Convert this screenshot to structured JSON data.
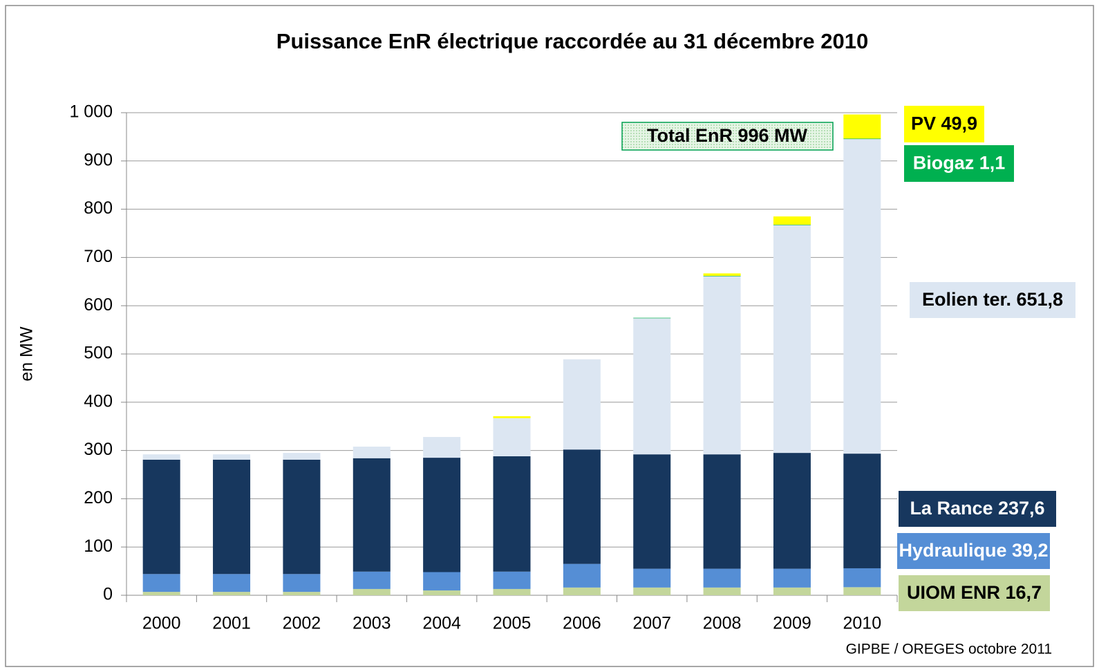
{
  "chart_data": {
    "type": "stacked_bar",
    "title": "Puissance EnR électrique raccordée au 31 décembre 2010",
    "y_label": "en MW",
    "source": "GIPBE / OREGES octobre 2011",
    "total_annotation": "Total EnR 996 MW",
    "categories": [
      "2000",
      "2001",
      "2002",
      "2003",
      "2004",
      "2005",
      "2006",
      "2007",
      "2008",
      "2009",
      "2010"
    ],
    "series": [
      {
        "name": "UIOM ENR",
        "color": "#c3d69b",
        "label": "UIOM ENR 16,7",
        "values": [
          7,
          7,
          7,
          13,
          10,
          13,
          16,
          16,
          16,
          16,
          16.7
        ]
      },
      {
        "name": "Hydraulique",
        "color": "#558ed5",
        "label": "Hydraulique 39,2",
        "values": [
          37,
          37,
          37,
          36,
          38,
          36,
          49,
          39,
          39,
          39,
          39.2
        ]
      },
      {
        "name": "La Rance",
        "color": "#17375e",
        "label": "La Rance 237,6",
        "values": [
          237,
          237,
          237,
          235,
          237,
          239,
          237,
          237,
          237,
          240,
          237.6
        ]
      },
      {
        "name": "Eolien ter.",
        "color": "#dce6f2",
        "label": "Eolien ter. 651,8",
        "values": [
          11,
          11,
          14,
          24,
          43,
          79,
          187,
          282,
          369,
          472,
          651.8
        ]
      },
      {
        "name": "Biogaz",
        "color": "#00b050",
        "label": "Biogaz 1,1",
        "values": [
          0,
          0,
          0,
          0,
          0,
          0,
          0,
          1,
          1,
          1,
          1.1
        ]
      },
      {
        "name": "PV",
        "color": "#ffff00",
        "label": "PV 49,9",
        "values": [
          0,
          0,
          0,
          0,
          0,
          4,
          0,
          0,
          5,
          17,
          49.9
        ]
      }
    ],
    "ylim": [
      0,
      1000
    ],
    "yticks": [
      0,
      100,
      200,
      300,
      400,
      500,
      600,
      700,
      800,
      900,
      {
        "value": 1000,
        "label": "1 000"
      }
    ],
    "grid": true
  }
}
